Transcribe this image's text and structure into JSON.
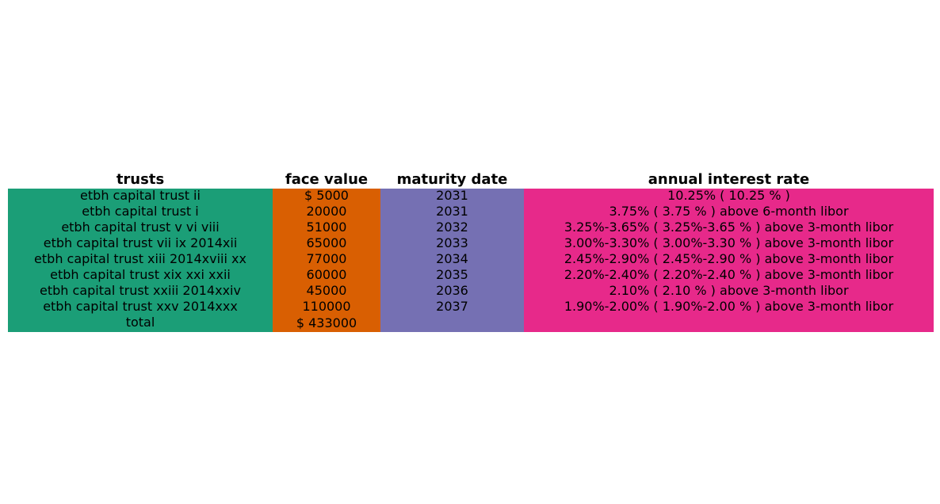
{
  "chart_data": {
    "type": "table",
    "columns": [
      {
        "header": "trusts",
        "color": "#1b9e77"
      },
      {
        "header": "face value",
        "color": "#d95f02"
      },
      {
        "header": "maturity date",
        "color": "#7570b3"
      },
      {
        "header": "annual interest rate",
        "color": "#e7298a"
      }
    ],
    "rows": [
      [
        "etbh capital trust ii",
        "$ 5000",
        "2031",
        "10.25% ( 10.25 % )"
      ],
      [
        "etbh capital trust i",
        "20000",
        "2031",
        "3.75% ( 3.75 % ) above 6-month libor"
      ],
      [
        "etbh capital trust v vi viii",
        "51000",
        "2032",
        "3.25%-3.65% ( 3.25%-3.65 % ) above 3-month libor"
      ],
      [
        "etbh capital trust vii ix 2014xii",
        "65000",
        "2033",
        "3.00%-3.30% ( 3.00%-3.30 % ) above 3-month libor"
      ],
      [
        "etbh capital trust xiii 2014xviii xx",
        "77000",
        "2034",
        "2.45%-2.90% ( 2.45%-2.90 % ) above 3-month libor"
      ],
      [
        "etbh capital trust xix xxi xxii",
        "60000",
        "2035",
        "2.20%-2.40% ( 2.20%-2.40 % ) above 3-month libor"
      ],
      [
        "etbh capital trust xxiii 2014xxiv",
        "45000",
        "2036",
        "2.10% ( 2.10 % ) above 3-month libor"
      ],
      [
        "etbh capital trust xxv 2014xxx",
        "110000",
        "2037",
        "1.90%-2.00% ( 1.90%-2.00 % ) above 3-month libor"
      ],
      [
        "total",
        "$ 433000",
        "",
        ""
      ]
    ]
  }
}
